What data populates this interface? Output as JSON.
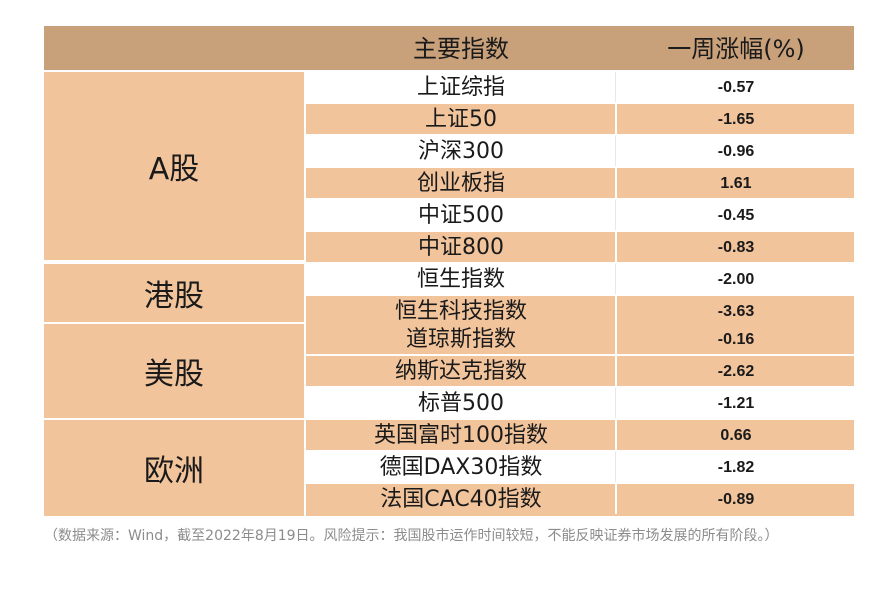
{
  "header": {
    "col_index": "主要指数",
    "col_change": "一周涨幅(%)"
  },
  "groups": [
    {
      "label": "A股",
      "rows": [
        {
          "name": "上证综指",
          "value": "-0.57"
        },
        {
          "name": "上证50",
          "value": "-1.65"
        },
        {
          "name": "沪深300",
          "value": "-0.96"
        },
        {
          "name": "创业板指",
          "value": "1.61"
        },
        {
          "name": "中证500",
          "value": "-0.45"
        },
        {
          "name": "中证800",
          "value": "-0.83"
        }
      ]
    },
    {
      "label": "港股",
      "rows": [
        {
          "name": "恒生指数",
          "value": "-2.00"
        },
        {
          "name": "恒生科技指数",
          "value": "-3.63"
        }
      ]
    },
    {
      "label": "美股",
      "rows": [
        {
          "name": "道琼斯指数",
          "value": "-0.16"
        },
        {
          "name": "纳斯达克指数",
          "value": "-2.62"
        },
        {
          "name": "标普500",
          "value": "-1.21"
        }
      ]
    },
    {
      "label": "欧洲",
      "rows": [
        {
          "name": "英国富时100指数",
          "value": "0.66"
        },
        {
          "name": "德国DAX30指数",
          "value": "-1.82"
        },
        {
          "name": "法国CAC40指数",
          "value": "-0.89"
        }
      ]
    }
  ],
  "footnote": "（数据来源：Wind，截至2022年8月19日。风险提示：我国股市运作时间较短，不能反映证券市场发展的所有阶段。）"
}
